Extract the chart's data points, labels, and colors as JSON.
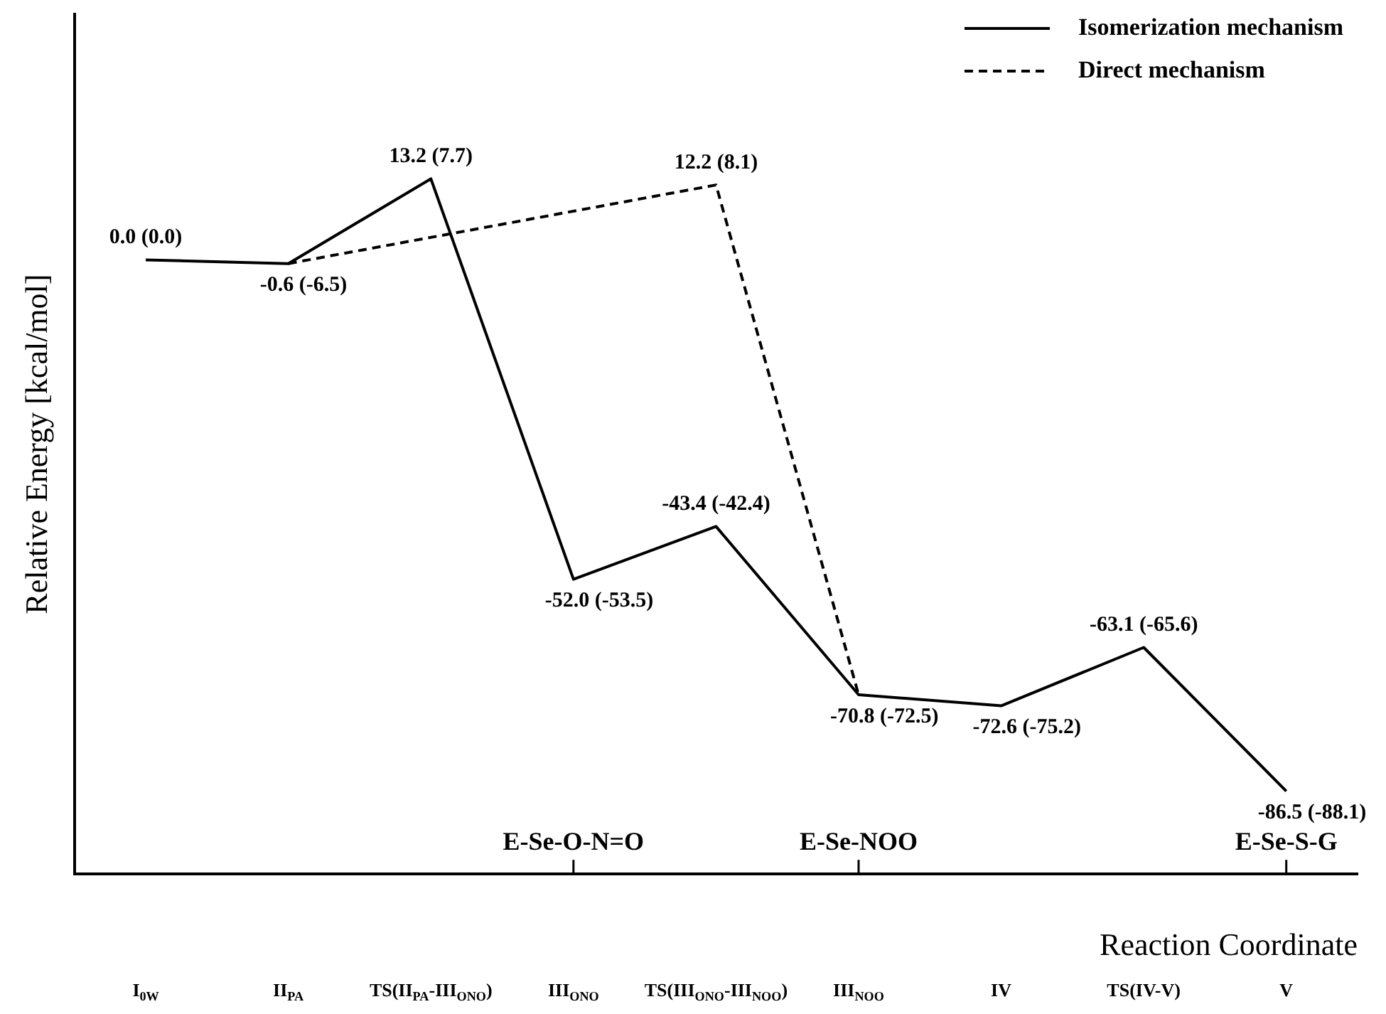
{
  "chart_data": {
    "type": "line",
    "xlabel": "Reaction Coordinate",
    "ylabel": "Relative Energy [kcal/mol]",
    "categories": [
      "I$_{0W}$",
      "II$_{PA}$",
      "TS(II$_{PA}$-III$_{ONO}$)",
      "III$_{ONO}$",
      "TS(III$_{ONO}$-III$_{NOO}$)",
      "III$_{NOO}$",
      "IV",
      "TS(IV-V)",
      "V"
    ],
    "series": [
      {
        "name": "Isomerization mechanism",
        "color": "#000000",
        "line_style": "solid",
        "values": [
          0.0,
          -0.6,
          13.2,
          -52.0,
          -43.4,
          -70.8,
          -72.6,
          -63.1,
          -86.5
        ],
        "value_labels": [
          "0.0 (0.0)",
          "-0.6 (-6.5)",
          "13.2 (7.7)",
          "-52.0 (-53.5)",
          "-43.4 (-42.4)",
          "-70.8 (-72.5)",
          "-72.6 (-75.2)",
          "-63.1 (-65.6)",
          "-86.5 (-88.1)"
        ]
      },
      {
        "name": "Direct mechanism",
        "color": "#000000",
        "line_style": "dashed",
        "values": [
          null,
          -0.6,
          null,
          null,
          12.2,
          -70.8,
          null,
          null,
          null
        ],
        "value_labels": [
          null,
          null,
          null,
          null,
          "12.2 (8.1)",
          null,
          null,
          null,
          null
        ]
      }
    ],
    "annotations": [
      {
        "text": "E-Se-O-N=O",
        "x": "III$_{ONO}$"
      },
      {
        "text": "E-Se-NOO",
        "x": "III$_{NOO}$"
      },
      {
        "text": "E-Se-S-G",
        "x": "V"
      }
    ],
    "tick_labels": "x",
    "marker": "none",
    "legend": "top right",
    "grid": false
  }
}
